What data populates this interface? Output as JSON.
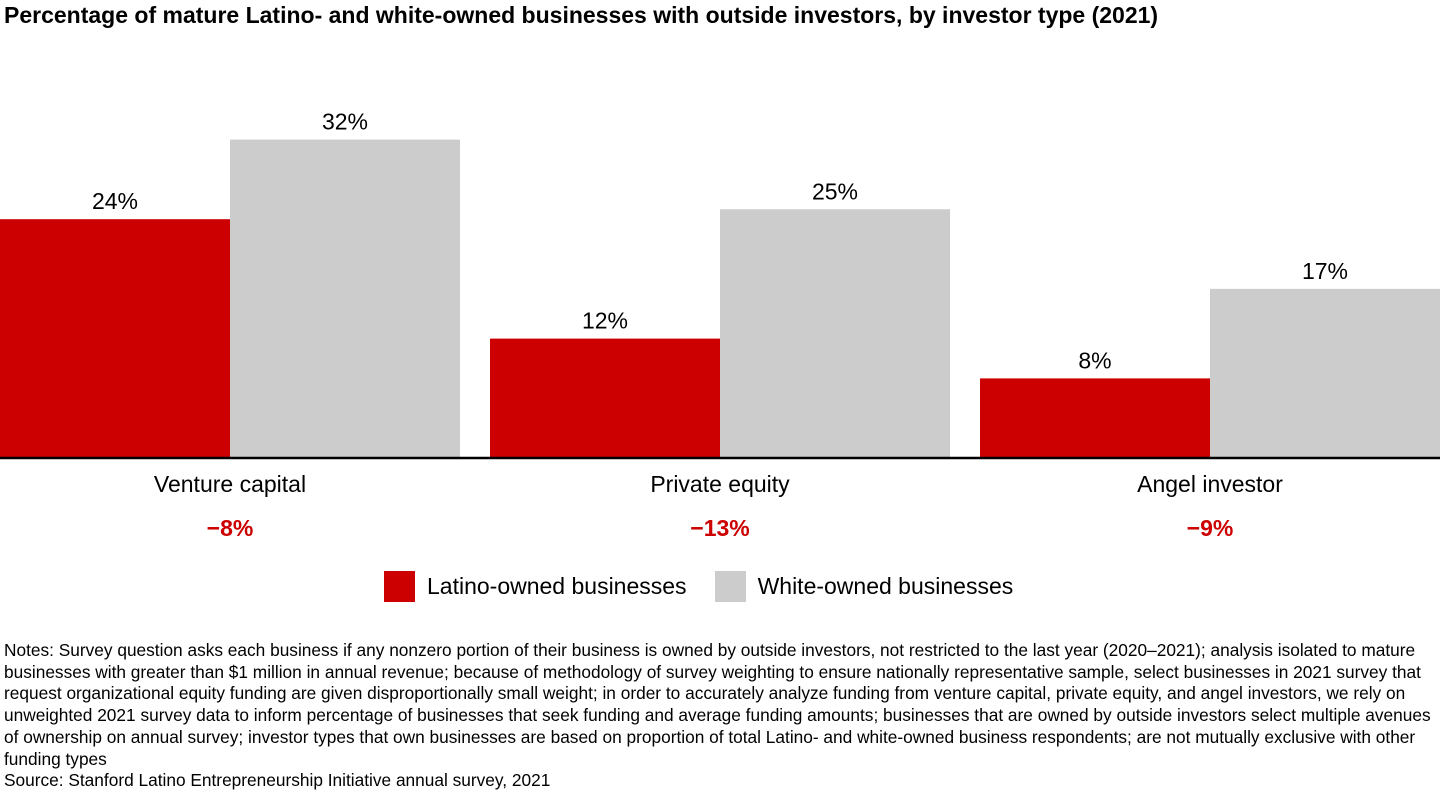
{
  "title": "Percentage of mature Latino- and white-owned businesses with outside investors, by investor type (2021)",
  "colors": {
    "latino": "#cc0000",
    "white": "#cccccc",
    "difference_text": "#cc0000",
    "axis": "#000000"
  },
  "chart_data": {
    "type": "bar",
    "categories": [
      "Venture capital",
      "Private equity",
      "Angel investor"
    ],
    "series": [
      {
        "name": "Latino-owned businesses",
        "values": [
          24,
          12,
          8
        ],
        "labels": [
          "24%",
          "12%",
          "8%"
        ]
      },
      {
        "name": "White-owned businesses",
        "values": [
          32,
          25,
          17
        ],
        "labels": [
          "32%",
          "25%",
          "17%"
        ]
      }
    ],
    "differences": [
      "−8%",
      "−13%",
      "−9%"
    ],
    "ylim": [
      0,
      35
    ],
    "grid": false,
    "legend": "bottom-center"
  },
  "legend": {
    "items": [
      {
        "label": "Latino-owned businesses",
        "color": "#cc0000"
      },
      {
        "label": "White-owned businesses",
        "color": "#cccccc"
      }
    ]
  },
  "notes": {
    "text": "Notes: Survey question asks each business if any nonzero portion of their business is owned by outside investors, not restricted to the last year (2020–2021); analysis isolated to mature businesses with greater than $1 million in annual revenue; because of methodology of survey weighting to ensure nationally representative sample, select businesses in 2021 survey that request organizational equity funding are given disproportionally small weight; in order to accurately analyze funding from venture capital, private equity, and angel investors, we rely on unweighted 2021 survey data to inform percentage of businesses that seek funding and average funding amounts; businesses that are owned by outside investors select multiple avenues of ownership on annual survey; investor types that own businesses are based on proportion of total Latino- and white-owned business respondents; are not mutually exclusive with other funding types",
    "source": "Source: Stanford Latino Entrepreneurship Initiative annual survey, 2021"
  }
}
